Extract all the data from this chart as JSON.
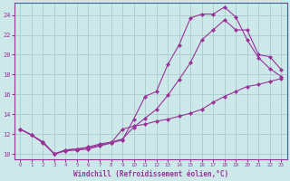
{
  "xlabel": "Windchill (Refroidissement éolien,°C)",
  "bg_color": "#cce8e8",
  "grid_color": "#aacccc",
  "line_color": "#993399",
  "xlim": [
    -0.5,
    23.5
  ],
  "ylim": [
    9.5,
    25.2
  ],
  "yticks": [
    10,
    12,
    14,
    16,
    18,
    20,
    22,
    24
  ],
  "xticks": [
    0,
    1,
    2,
    3,
    4,
    5,
    6,
    7,
    8,
    9,
    10,
    11,
    12,
    13,
    14,
    15,
    16,
    17,
    18,
    19,
    20,
    21,
    22,
    23
  ],
  "series": [
    {
      "x": [
        0,
        1,
        2,
        3,
        4,
        5,
        6,
        7,
        8,
        9,
        10,
        11,
        12,
        13,
        14,
        15,
        16,
        17,
        18,
        19,
        20,
        21,
        22,
        23
      ],
      "y": [
        12.5,
        11.9,
        11.2,
        10.0,
        10.4,
        10.5,
        10.6,
        10.9,
        11.1,
        11.4,
        13.5,
        15.8,
        16.3,
        19.0,
        21.0,
        23.7,
        24.1,
        24.1,
        24.8,
        23.8,
        21.5,
        19.7,
        18.6,
        17.8
      ]
    },
    {
      "x": [
        0,
        1,
        2,
        3,
        4,
        5,
        6,
        7,
        8,
        9,
        10,
        11,
        12,
        13,
        14,
        15,
        16,
        17,
        18,
        19,
        20,
        21,
        22,
        23
      ],
      "y": [
        12.5,
        11.9,
        11.2,
        10.0,
        10.4,
        10.5,
        10.7,
        11.0,
        11.2,
        11.5,
        12.7,
        13.6,
        14.5,
        15.9,
        17.5,
        19.2,
        21.5,
        22.5,
        23.5,
        22.5,
        22.5,
        20.0,
        19.8,
        18.5
      ]
    },
    {
      "x": [
        0,
        1,
        2,
        3,
        4,
        5,
        6,
        7,
        8,
        9,
        10,
        11,
        12,
        13,
        14,
        15,
        16,
        17,
        18,
        19,
        20,
        21,
        22,
        23
      ],
      "y": [
        12.5,
        11.9,
        11.1,
        10.0,
        10.3,
        10.4,
        10.5,
        10.8,
        11.1,
        12.5,
        12.8,
        13.0,
        13.3,
        13.5,
        13.8,
        14.1,
        14.5,
        15.2,
        15.8,
        16.3,
        16.8,
        17.0,
        17.3,
        17.6
      ]
    }
  ]
}
